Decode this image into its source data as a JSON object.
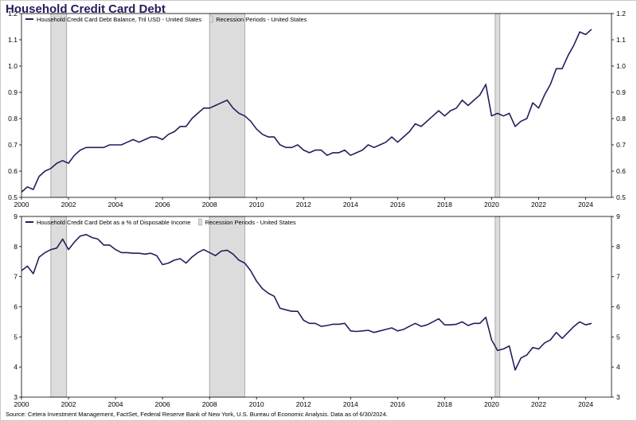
{
  "page": {
    "title": "Household Credit Card Debt",
    "source": "Source: Cetera Investment Management, FactSet, Federal Reserve Bank of New York, U.S. Bureau of Economic Analysis. Data as of 6/30/2024."
  },
  "colors": {
    "line": "#2b1a5e",
    "recession": "#dcdcdc",
    "recession_border": "#9a9a9a",
    "axis": "#000000"
  },
  "chart_data": [
    {
      "type": "line",
      "title": "",
      "xlabel": "",
      "ylabel": "",
      "xlim": [
        2000,
        2025.1
      ],
      "ylim": [
        0.5,
        1.2
      ],
      "grid": false,
      "legend": "top-left",
      "x_ticks": [
        "2000",
        "2002",
        "2004",
        "2006",
        "2008",
        "2010",
        "2012",
        "2014",
        "2016",
        "2018",
        "2020",
        "2022",
        "2024"
      ],
      "y_ticks": [
        "0.5",
        "0.6",
        "0.7",
        "0.8",
        "0.9",
        "1.0",
        "1.1",
        "1.2"
      ],
      "recession_periods": [
        [
          2001.25,
          2001.92
        ],
        [
          2008.0,
          2009.5
        ],
        [
          2020.15,
          2020.35
        ]
      ],
      "legend_recession": "Recession Periods - United States",
      "series": [
        {
          "name": "Household Credit Card Debt Balance, Tril USD - United States",
          "x": [
            2000.0,
            2000.25,
            2000.5,
            2000.75,
            2001.0,
            2001.25,
            2001.5,
            2001.75,
            2002.0,
            2002.25,
            2002.5,
            2002.75,
            2003.0,
            2003.25,
            2003.5,
            2003.75,
            2004.0,
            2004.25,
            2004.5,
            2004.75,
            2005.0,
            2005.25,
            2005.5,
            2005.75,
            2006.0,
            2006.25,
            2006.5,
            2006.75,
            2007.0,
            2007.25,
            2007.5,
            2007.75,
            2008.0,
            2008.25,
            2008.5,
            2008.75,
            2009.0,
            2009.25,
            2009.5,
            2009.75,
            2010.0,
            2010.25,
            2010.5,
            2010.75,
            2011.0,
            2011.25,
            2011.5,
            2011.75,
            2012.0,
            2012.25,
            2012.5,
            2012.75,
            2013.0,
            2013.25,
            2013.5,
            2013.75,
            2014.0,
            2014.25,
            2014.5,
            2014.75,
            2015.0,
            2015.25,
            2015.5,
            2015.75,
            2016.0,
            2016.25,
            2016.5,
            2016.75,
            2017.0,
            2017.25,
            2017.5,
            2017.75,
            2018.0,
            2018.25,
            2018.5,
            2018.75,
            2019.0,
            2019.25,
            2019.5,
            2019.75,
            2020.0,
            2020.25,
            2020.5,
            2020.75,
            2021.0,
            2021.25,
            2021.5,
            2021.75,
            2022.0,
            2022.25,
            2022.5,
            2022.75,
            2023.0,
            2023.25,
            2023.5,
            2023.75,
            2024.0,
            2024.25
          ],
          "values": [
            0.52,
            0.54,
            0.53,
            0.58,
            0.6,
            0.61,
            0.63,
            0.64,
            0.63,
            0.66,
            0.68,
            0.69,
            0.69,
            0.69,
            0.69,
            0.7,
            0.7,
            0.7,
            0.71,
            0.72,
            0.71,
            0.72,
            0.73,
            0.73,
            0.72,
            0.74,
            0.75,
            0.77,
            0.77,
            0.8,
            0.82,
            0.84,
            0.84,
            0.85,
            0.86,
            0.87,
            0.84,
            0.82,
            0.81,
            0.79,
            0.76,
            0.74,
            0.73,
            0.73,
            0.7,
            0.69,
            0.69,
            0.7,
            0.68,
            0.67,
            0.68,
            0.68,
            0.66,
            0.67,
            0.67,
            0.68,
            0.66,
            0.67,
            0.68,
            0.7,
            0.69,
            0.7,
            0.71,
            0.73,
            0.71,
            0.73,
            0.75,
            0.78,
            0.77,
            0.79,
            0.81,
            0.83,
            0.81,
            0.83,
            0.84,
            0.87,
            0.85,
            0.87,
            0.89,
            0.93,
            0.81,
            0.82,
            0.81,
            0.82,
            0.77,
            0.79,
            0.8,
            0.86,
            0.84,
            0.89,
            0.93,
            0.99,
            0.99,
            1.04,
            1.08,
            1.13,
            1.12,
            1.14
          ]
        }
      ]
    },
    {
      "type": "line",
      "title": "",
      "xlabel": "",
      "ylabel": "",
      "xlim": [
        2000,
        2025.1
      ],
      "ylim": [
        3,
        9
      ],
      "grid": false,
      "legend": "top-left",
      "x_ticks": [
        "2000",
        "2002",
        "2004",
        "2006",
        "2008",
        "2010",
        "2012",
        "2014",
        "2016",
        "2018",
        "2020",
        "2022",
        "2024"
      ],
      "y_ticks": [
        "3",
        "4",
        "5",
        "6",
        "7",
        "8",
        "9"
      ],
      "recession_periods": [
        [
          2001.25,
          2001.92
        ],
        [
          2008.0,
          2009.5
        ],
        [
          2020.15,
          2020.35
        ]
      ],
      "legend_recession": "Recession Periods - United States",
      "series": [
        {
          "name": "Household Credit Card Debt as a % of Disposable Income",
          "x": [
            2000.0,
            2000.25,
            2000.5,
            2000.75,
            2001.0,
            2001.25,
            2001.5,
            2001.75,
            2002.0,
            2002.25,
            2002.5,
            2002.75,
            2003.0,
            2003.25,
            2003.5,
            2003.75,
            2004.0,
            2004.25,
            2004.5,
            2004.75,
            2005.0,
            2005.25,
            2005.5,
            2005.75,
            2006.0,
            2006.25,
            2006.5,
            2006.75,
            2007.0,
            2007.25,
            2007.5,
            2007.75,
            2008.0,
            2008.25,
            2008.5,
            2008.75,
            2009.0,
            2009.25,
            2009.5,
            2009.75,
            2010.0,
            2010.25,
            2010.5,
            2010.75,
            2011.0,
            2011.25,
            2011.5,
            2011.75,
            2012.0,
            2012.25,
            2012.5,
            2012.75,
            2013.0,
            2013.25,
            2013.5,
            2013.75,
            2014.0,
            2014.25,
            2014.5,
            2014.75,
            2015.0,
            2015.25,
            2015.5,
            2015.75,
            2016.0,
            2016.25,
            2016.5,
            2016.75,
            2017.0,
            2017.25,
            2017.5,
            2017.75,
            2018.0,
            2018.25,
            2018.5,
            2018.75,
            2019.0,
            2019.25,
            2019.5,
            2019.75,
            2020.0,
            2020.25,
            2020.5,
            2020.75,
            2021.0,
            2021.25,
            2021.5,
            2021.75,
            2022.0,
            2022.25,
            2022.5,
            2022.75,
            2023.0,
            2023.25,
            2023.5,
            2023.75,
            2024.0,
            2024.25
          ],
          "values": [
            7.2,
            7.35,
            7.1,
            7.65,
            7.8,
            7.9,
            7.95,
            8.25,
            7.9,
            8.15,
            8.35,
            8.4,
            8.3,
            8.25,
            8.05,
            8.05,
            7.9,
            7.8,
            7.8,
            7.78,
            7.78,
            7.75,
            7.78,
            7.7,
            7.4,
            7.45,
            7.55,
            7.6,
            7.45,
            7.65,
            7.8,
            7.9,
            7.8,
            7.7,
            7.85,
            7.88,
            7.75,
            7.55,
            7.45,
            7.2,
            6.85,
            6.6,
            6.45,
            6.35,
            5.95,
            5.9,
            5.85,
            5.85,
            5.55,
            5.45,
            5.45,
            5.35,
            5.38,
            5.42,
            5.42,
            5.45,
            5.2,
            5.18,
            5.2,
            5.22,
            5.15,
            5.2,
            5.25,
            5.3,
            5.2,
            5.25,
            5.35,
            5.45,
            5.35,
            5.4,
            5.5,
            5.6,
            5.4,
            5.4,
            5.42,
            5.5,
            5.38,
            5.45,
            5.45,
            5.65,
            4.9,
            4.55,
            4.6,
            4.7,
            3.9,
            4.3,
            4.4,
            4.65,
            4.6,
            4.8,
            4.9,
            5.15,
            4.95,
            5.15,
            5.35,
            5.5,
            5.4,
            5.45
          ]
        }
      ]
    }
  ]
}
